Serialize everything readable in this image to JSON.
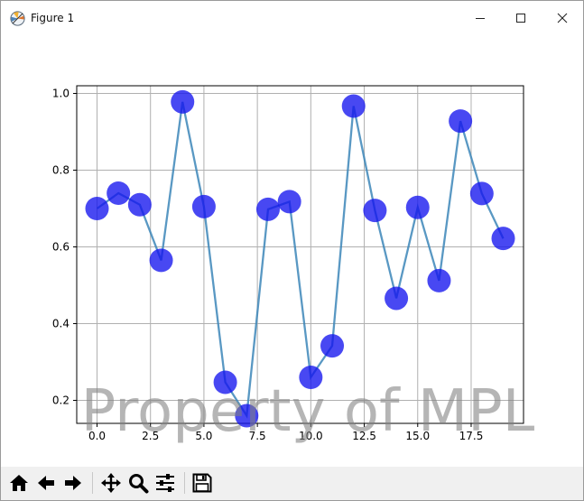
{
  "window": {
    "title": "Figure 1",
    "app_icon": "matplotlib-icon",
    "controls": [
      "minimize-icon",
      "maximize-icon",
      "close-icon"
    ]
  },
  "toolbar": {
    "buttons": [
      {
        "name": "home-button",
        "icon": "home-icon"
      },
      {
        "name": "back-button",
        "icon": "arrow-left-icon"
      },
      {
        "name": "forward-button",
        "icon": "arrow-right-icon"
      },
      {
        "name": "pan-button",
        "icon": "move-icon"
      },
      {
        "name": "zoom-button",
        "icon": "magnifier-icon"
      },
      {
        "name": "configure-subplots-button",
        "icon": "sliders-icon"
      },
      {
        "name": "save-button",
        "icon": "floppy-disk-icon"
      }
    ]
  },
  "watermark": "Property of MPL",
  "chart_data": {
    "type": "line",
    "title": "",
    "xlabel": "",
    "ylabel": "",
    "xlim": [
      -0.95,
      19.95
    ],
    "ylim": [
      0.14,
      1.02
    ],
    "grid": true,
    "xticks": [
      0,
      2.5,
      5,
      7.5,
      10,
      12.5,
      15,
      17.5
    ],
    "xtick_labels": [
      "0.0",
      "2.5",
      "5.0",
      "7.5",
      "10.0",
      "12.5",
      "15.0",
      "17.5"
    ],
    "yticks": [
      0.2,
      0.4,
      0.6,
      0.8,
      1.0
    ],
    "ytick_labels": [
      "0.2",
      "0.4",
      "0.6",
      "0.8",
      "1.0"
    ],
    "x": [
      0,
      1,
      2,
      3,
      4,
      5,
      6,
      7,
      8,
      9,
      10,
      11,
      12,
      13,
      14,
      15,
      16,
      17,
      18,
      19
    ],
    "series": [
      {
        "values": [
          0.7,
          0.74,
          0.71,
          0.565,
          0.978,
          0.705,
          0.247,
          0.16,
          0.698,
          0.718,
          0.26,
          0.342,
          0.967,
          0.695,
          0.466,
          0.703,
          0.512,
          0.928,
          0.739,
          0.622
        ],
        "line_color": "#3c86b8",
        "marker_color": "#1414ee"
      }
    ]
  }
}
